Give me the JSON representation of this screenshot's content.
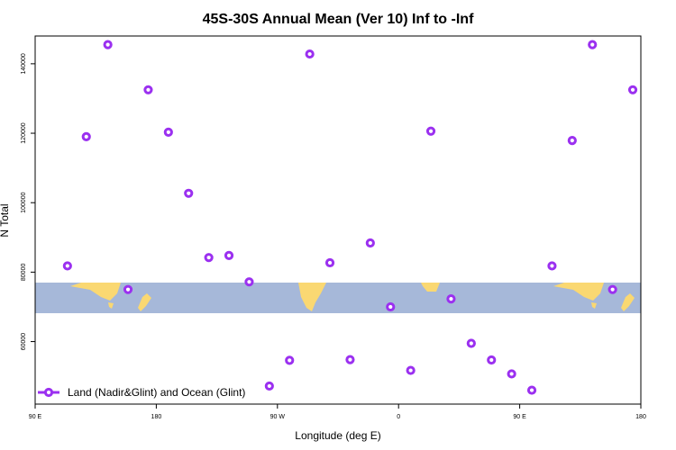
{
  "chart_data": {
    "type": "scatter",
    "title": "45S-30S Annual Mean (Ver 10)   Inf to -Inf",
    "xlabel": "Longitude (deg E)",
    "ylabel": "N Total",
    "xlim": [
      90,
      540
    ],
    "ylim": [
      42000,
      148000
    ],
    "x_ticks": [
      {
        "value": 90,
        "label": "90 E"
      },
      {
        "value": 180,
        "label": "180"
      },
      {
        "value": 270,
        "label": "90 W"
      },
      {
        "value": 360,
        "label": "0"
      },
      {
        "value": 450,
        "label": "90 E"
      },
      {
        "value": 540,
        "label": "180"
      }
    ],
    "y_ticks": [
      {
        "value": 60000,
        "label": "60000"
      },
      {
        "value": 80000,
        "label": "80000"
      },
      {
        "value": 100000,
        "label": "100000"
      },
      {
        "value": 120000,
        "label": "120000"
      },
      {
        "value": 140000,
        "label": "140000"
      }
    ],
    "map_strip_latitude": "45S-30S",
    "legend": {
      "label": "Land (Nadir&Glint) and Ocean (Glint)",
      "position": "bottom-left"
    },
    "series": [
      {
        "name": "Land (Nadir&Glint) and Ocean (Glint)",
        "color": "#9b30f0",
        "points": [
          {
            "x": 114,
            "y": 81800
          },
          {
            "x": 128,
            "y": 119000
          },
          {
            "x": 144,
            "y": 145500
          },
          {
            "x": 159,
            "y": 75000
          },
          {
            "x": 174,
            "y": 132500
          },
          {
            "x": 189,
            "y": 120300
          },
          {
            "x": 204,
            "y": 102700
          },
          {
            "x": 219,
            "y": 84200
          },
          {
            "x": 234,
            "y": 84800
          },
          {
            "x": 249,
            "y": 77200
          },
          {
            "x": 264,
            "y": 47200
          },
          {
            "x": 279,
            "y": 54600
          },
          {
            "x": 294,
            "y": 142800
          },
          {
            "x": 309,
            "y": 82700
          },
          {
            "x": 324,
            "y": 54800
          },
          {
            "x": 339,
            "y": 88400
          },
          {
            "x": 354,
            "y": 70000
          },
          {
            "x": 369,
            "y": 51700
          },
          {
            "x": 384,
            "y": 120600
          },
          {
            "x": 399,
            "y": 72300
          },
          {
            "x": 414,
            "y": 59500
          },
          {
            "x": 429,
            "y": 54700
          },
          {
            "x": 444,
            "y": 50700
          },
          {
            "x": 459,
            "y": 46000
          },
          {
            "x": 474,
            "y": 81800
          },
          {
            "x": 489,
            "y": 117900
          },
          {
            "x": 504,
            "y": 145500
          },
          {
            "x": 519,
            "y": 75000
          },
          {
            "x": 534,
            "y": 132500
          }
        ]
      }
    ]
  }
}
